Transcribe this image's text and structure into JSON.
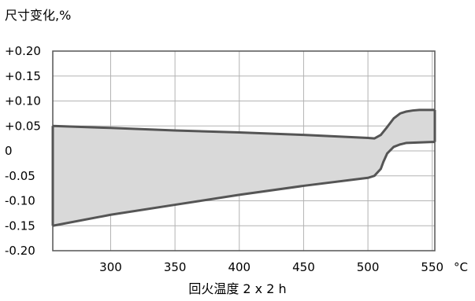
{
  "chart_data": {
    "type": "area",
    "title": "",
    "ylabel": "尺寸变化,%",
    "xlabel": "回火温度 2 x 2 h",
    "x_unit": "°C",
    "xlim": [
      255,
      552
    ],
    "ylim": [
      -0.2,
      0.2
    ],
    "x_ticks": [
      300,
      350,
      400,
      450,
      500,
      550
    ],
    "x_tick_labels": [
      "300",
      "350",
      "400",
      "450",
      "500",
      "550"
    ],
    "y_ticks": [
      0.2,
      0.15,
      0.1,
      0.05,
      0,
      -0.05,
      -0.1,
      -0.15,
      -0.2
    ],
    "y_tick_labels": [
      "+0.20",
      "+0.15",
      "+0.10",
      "+0.05",
      "0",
      "-0.05",
      "-0.10",
      "-0.15",
      "-0.20"
    ],
    "grid": true,
    "band": {
      "upper": {
        "x": [
          255,
          300,
          350,
          400,
          450,
          500,
          505,
          510,
          515,
          520,
          525,
          530,
          535,
          540,
          550,
          552
        ],
        "y": [
          0.05,
          0.046,
          0.041,
          0.037,
          0.032,
          0.026,
          0.025,
          0.032,
          0.048,
          0.065,
          0.075,
          0.079,
          0.081,
          0.082,
          0.082,
          0.082
        ]
      },
      "lower": {
        "x": [
          255,
          300,
          350,
          400,
          450,
          500,
          505,
          510,
          512,
          515,
          520,
          525,
          530,
          540,
          550,
          552
        ],
        "y": [
          -0.15,
          -0.128,
          -0.108,
          -0.088,
          -0.07,
          -0.054,
          -0.05,
          -0.036,
          -0.022,
          -0.005,
          0.008,
          0.013,
          0.016,
          0.017,
          0.018,
          0.018
        ]
      },
      "fill_color": "#d9d9d9",
      "line_color": "#555555"
    },
    "colors": {
      "grid": "#b3b3b3",
      "frame": "#555555"
    }
  }
}
